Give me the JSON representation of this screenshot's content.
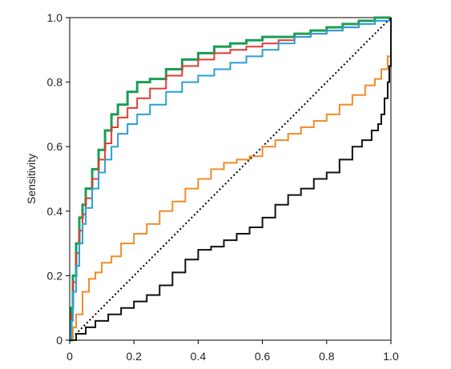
{
  "chart_data": {
    "type": "line",
    "title": "",
    "xlabel": "",
    "ylabel": "Sensitivity",
    "xlim": [
      0,
      1
    ],
    "ylim": [
      0,
      1
    ],
    "xticks": [
      0,
      0.2,
      0.4,
      0.6,
      0.8,
      1
    ],
    "xtick_labels": [
      "0",
      "0.2",
      "0.4",
      "0.6",
      "0.8",
      "1.0"
    ],
    "yticks": [
      0,
      0.2,
      0.4,
      0.6,
      0.8,
      1
    ],
    "ytick_labels": [
      "0",
      "0.2",
      "0.4",
      "0.6",
      "0.8",
      "1.0"
    ],
    "grid": false,
    "legend": "none",
    "reference_line": {
      "x": [
        0,
        1
      ],
      "y": [
        0,
        1
      ],
      "color": "#000000",
      "style": "dotted"
    },
    "series": [
      {
        "color": "#1a9e55",
        "x": [
          0,
          0.005,
          0.01,
          0.02,
          0.03,
          0.04,
          0.05,
          0.07,
          0.09,
          0.11,
          0.13,
          0.15,
          0.18,
          0.21,
          0.25,
          0.3,
          0.35,
          0.4,
          0.45,
          0.5,
          0.55,
          0.6,
          0.65,
          0.7,
          0.75,
          0.8,
          0.85,
          0.9,
          0.95,
          1.0
        ],
        "y": [
          0,
          0.1,
          0.2,
          0.3,
          0.38,
          0.42,
          0.47,
          0.53,
          0.59,
          0.65,
          0.7,
          0.73,
          0.77,
          0.8,
          0.81,
          0.84,
          0.87,
          0.89,
          0.91,
          0.92,
          0.93,
          0.94,
          0.94,
          0.95,
          0.96,
          0.97,
          0.98,
          0.99,
          1.0,
          1.0
        ]
      },
      {
        "color": "#e03c31",
        "x": [
          0,
          0.005,
          0.01,
          0.02,
          0.03,
          0.04,
          0.05,
          0.07,
          0.09,
          0.11,
          0.13,
          0.15,
          0.18,
          0.21,
          0.25,
          0.3,
          0.35,
          0.4,
          0.45,
          0.5,
          0.55,
          0.6,
          0.65,
          0.7,
          0.75,
          0.8,
          0.85,
          0.9,
          0.95,
          1.0
        ],
        "y": [
          0,
          0.08,
          0.18,
          0.27,
          0.34,
          0.39,
          0.44,
          0.5,
          0.56,
          0.61,
          0.66,
          0.69,
          0.72,
          0.75,
          0.78,
          0.82,
          0.85,
          0.87,
          0.89,
          0.9,
          0.91,
          0.92,
          0.93,
          0.94,
          0.95,
          0.96,
          0.97,
          0.98,
          0.99,
          1.0
        ]
      },
      {
        "color": "#2b9fd8",
        "x": [
          0,
          0.005,
          0.01,
          0.02,
          0.03,
          0.04,
          0.05,
          0.07,
          0.09,
          0.11,
          0.13,
          0.15,
          0.18,
          0.21,
          0.25,
          0.3,
          0.35,
          0.4,
          0.45,
          0.5,
          0.55,
          0.6,
          0.65,
          0.7,
          0.75,
          0.8,
          0.85,
          0.9,
          0.95,
          1.0
        ],
        "y": [
          0,
          0.06,
          0.15,
          0.23,
          0.3,
          0.36,
          0.41,
          0.47,
          0.52,
          0.56,
          0.6,
          0.64,
          0.67,
          0.7,
          0.73,
          0.77,
          0.8,
          0.82,
          0.84,
          0.86,
          0.88,
          0.9,
          0.92,
          0.94,
          0.95,
          0.96,
          0.97,
          0.98,
          0.99,
          1.0
        ]
      },
      {
        "color": "#f28c28",
        "x": [
          0,
          0.01,
          0.02,
          0.04,
          0.06,
          0.08,
          0.1,
          0.13,
          0.16,
          0.2,
          0.24,
          0.28,
          0.32,
          0.36,
          0.4,
          0.44,
          0.48,
          0.52,
          0.56,
          0.6,
          0.64,
          0.68,
          0.72,
          0.76,
          0.8,
          0.84,
          0.88,
          0.92,
          0.95,
          0.97,
          0.99,
          1.0
        ],
        "y": [
          0,
          0.04,
          0.08,
          0.15,
          0.19,
          0.21,
          0.24,
          0.26,
          0.3,
          0.33,
          0.36,
          0.4,
          0.43,
          0.47,
          0.5,
          0.53,
          0.55,
          0.56,
          0.57,
          0.6,
          0.62,
          0.64,
          0.66,
          0.68,
          0.7,
          0.73,
          0.76,
          0.79,
          0.81,
          0.84,
          0.88,
          1.0
        ]
      },
      {
        "color": "#111111",
        "x": [
          0,
          0.02,
          0.05,
          0.08,
          0.12,
          0.16,
          0.2,
          0.24,
          0.28,
          0.32,
          0.36,
          0.4,
          0.44,
          0.48,
          0.52,
          0.56,
          0.6,
          0.64,
          0.68,
          0.72,
          0.76,
          0.8,
          0.84,
          0.88,
          0.91,
          0.94,
          0.96,
          0.97,
          0.98,
          0.99,
          0.995,
          1.0
        ],
        "y": [
          0,
          0.02,
          0.04,
          0.06,
          0.08,
          0.1,
          0.12,
          0.14,
          0.17,
          0.21,
          0.25,
          0.28,
          0.29,
          0.31,
          0.33,
          0.35,
          0.38,
          0.42,
          0.45,
          0.47,
          0.5,
          0.52,
          0.56,
          0.6,
          0.62,
          0.65,
          0.67,
          0.7,
          0.75,
          0.8,
          0.85,
          1.0
        ]
      }
    ]
  }
}
